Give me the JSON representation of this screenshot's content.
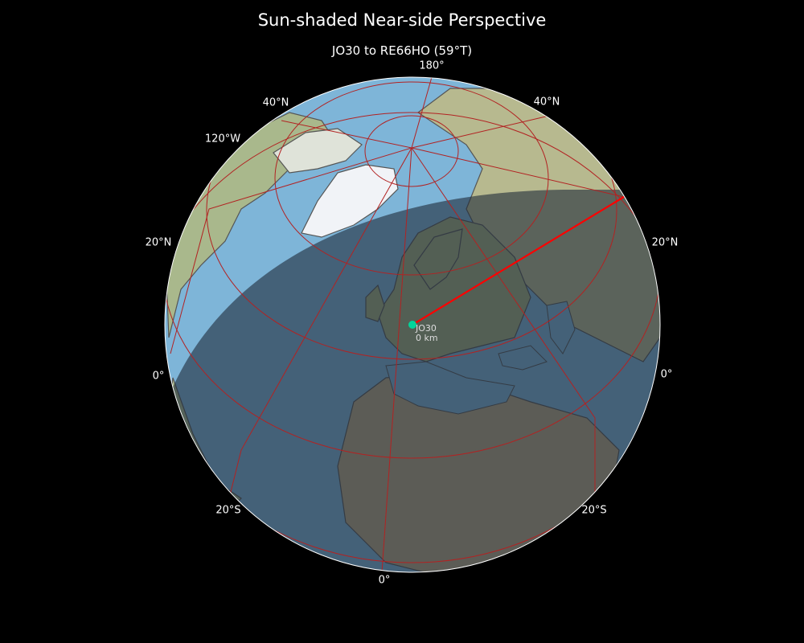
{
  "title": "Sun-shaded Near-side Perspective",
  "subtitle": "JO30 to RE66HO (59°T)",
  "graticule_labels": {
    "top": "180°",
    "top_left": "40°N",
    "top_right": "40°N",
    "upper_left": "120°W",
    "left_mid": "20°N",
    "right_mid": "20°N",
    "left_low": "0°",
    "right_low": "0°",
    "bottom_left": "20°S",
    "bottom_right": "20°S",
    "bottom": "0°"
  },
  "marker": {
    "name": "JO30",
    "distance": "0 km",
    "color": "#00d49a"
  },
  "path": {
    "from": "JO30",
    "to": "RE66HO",
    "bearing": "59°T",
    "color": "#ff0000"
  },
  "colors": {
    "ocean": "#7eb5d8",
    "night_overlay": "#1e2a38",
    "graticule": "#b22222",
    "coastline": "#555555"
  }
}
